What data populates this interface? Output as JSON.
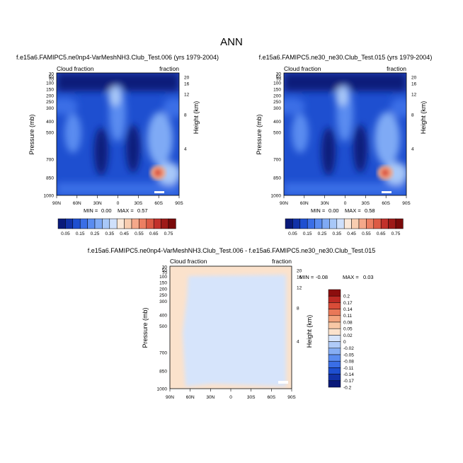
{
  "figure_title": "ANN",
  "colors": {
    "seq": [
      "#0a1a7a",
      "#1232a8",
      "#1e4fd0",
      "#3a6ee6",
      "#5a8cf0",
      "#7faaf5",
      "#a8c8f8",
      "#cfe0fb",
      "#fbe8d8",
      "#f8cdb0",
      "#f4a88a",
      "#ec7f62",
      "#dc5a44",
      "#c2312b",
      "#9e1a18",
      "#7a0a0a"
    ],
    "div": [
      "#0a1a7a",
      "#1232a8",
      "#1e4fd0",
      "#3a6ee6",
      "#5a8cf0",
      "#86aef4",
      "#b0cbf8",
      "#d6e4fb",
      "#fbe2cc",
      "#f8c8a6",
      "#f3a47e",
      "#e97858",
      "#d94c38",
      "#bd2a24",
      "#8c0e0e"
    ]
  },
  "chart_data": [
    {
      "type": "heatmap",
      "title": "f.e15a6.FAMIPC5.ne0np4-VarMeshNH3.Club_Test.006 (yrs 1979-2004)",
      "left_label": "Cloud fraction",
      "right_label": "fraction",
      "ylabel": "Pressure (mb)",
      "y2label": "Height (km)",
      "x_ticks": [
        "90N",
        "60N",
        "30N",
        "0",
        "30S",
        "60S",
        "90S"
      ],
      "y_ticks": [
        "30",
        "50",
        "70",
        "100",
        "150",
        "200",
        "250",
        "300",
        "400",
        "500",
        "700",
        "850",
        "1000"
      ],
      "y2_ticks": [
        "20",
        "16",
        "12",
        "8",
        "4"
      ],
      "min_label": "MIN = ",
      "min_value": "0.00",
      "max_label": "MAX = ",
      "max_value": "0.57",
      "colorbar_labels": [
        "0.05",
        "0.15",
        "0.25",
        "0.35",
        "0.45",
        "0.55",
        "0.65",
        "0.75"
      ],
      "value_range": [
        0,
        0.57
      ]
    },
    {
      "type": "heatmap",
      "title": "f.e15a6.FAMIPC5.ne30_ne30.Club_Test.015 (yrs 1979-2004)",
      "left_label": "Cloud fraction",
      "right_label": "fraction",
      "ylabel": "Pressure (mb)",
      "y2label": "Height (km)",
      "x_ticks": [
        "90N",
        "60N",
        "30N",
        "0",
        "30S",
        "60S",
        "90S"
      ],
      "y_ticks": [
        "30",
        "50",
        "70",
        "100",
        "150",
        "200",
        "250",
        "300",
        "400",
        "500",
        "700",
        "850",
        "1000"
      ],
      "y2_ticks": [
        "20",
        "16",
        "12",
        "8",
        "4"
      ],
      "min_label": "MIN = ",
      "min_value": "0.00",
      "max_label": "MAX = ",
      "max_value": "0.58",
      "colorbar_labels": [
        "0.05",
        "0.15",
        "0.25",
        "0.35",
        "0.45",
        "0.55",
        "0.65",
        "0.75"
      ],
      "value_range": [
        0,
        0.58
      ]
    },
    {
      "type": "heatmap",
      "title": "f.e15a6.FAMIPC5.ne0np4-VarMeshNH3.Club_Test.006 - f.e15a6.FAMIPC5.ne30_ne30.Club_Test.015",
      "left_label": "Cloud fraction",
      "right_label": "fraction",
      "ylabel": "Pressure (mb)",
      "y2label": "Height (km)",
      "x_ticks": [
        "90N",
        "60N",
        "30N",
        "0",
        "30S",
        "60S",
        "90S"
      ],
      "y_ticks": [
        "30",
        "50",
        "70",
        "100",
        "150",
        "200",
        "250",
        "300",
        "400",
        "500",
        "700",
        "850",
        "1000"
      ],
      "y2_ticks": [
        "20",
        "16",
        "12",
        "8",
        "4"
      ],
      "min_label": "MIN = ",
      "min_value": "-0.08",
      "max_label": "MAX = ",
      "max_value": "0.03",
      "colorbar_labels": [
        "0.2",
        "0.17",
        "0.14",
        "0.11",
        "0.08",
        "0.05",
        "0.02",
        "0",
        "-0.02",
        "-0.05",
        "-0.08",
        "-0.11",
        "-0.14",
        "-0.17",
        "-0.2"
      ],
      "value_range": [
        -0.08,
        0.03
      ]
    }
  ]
}
